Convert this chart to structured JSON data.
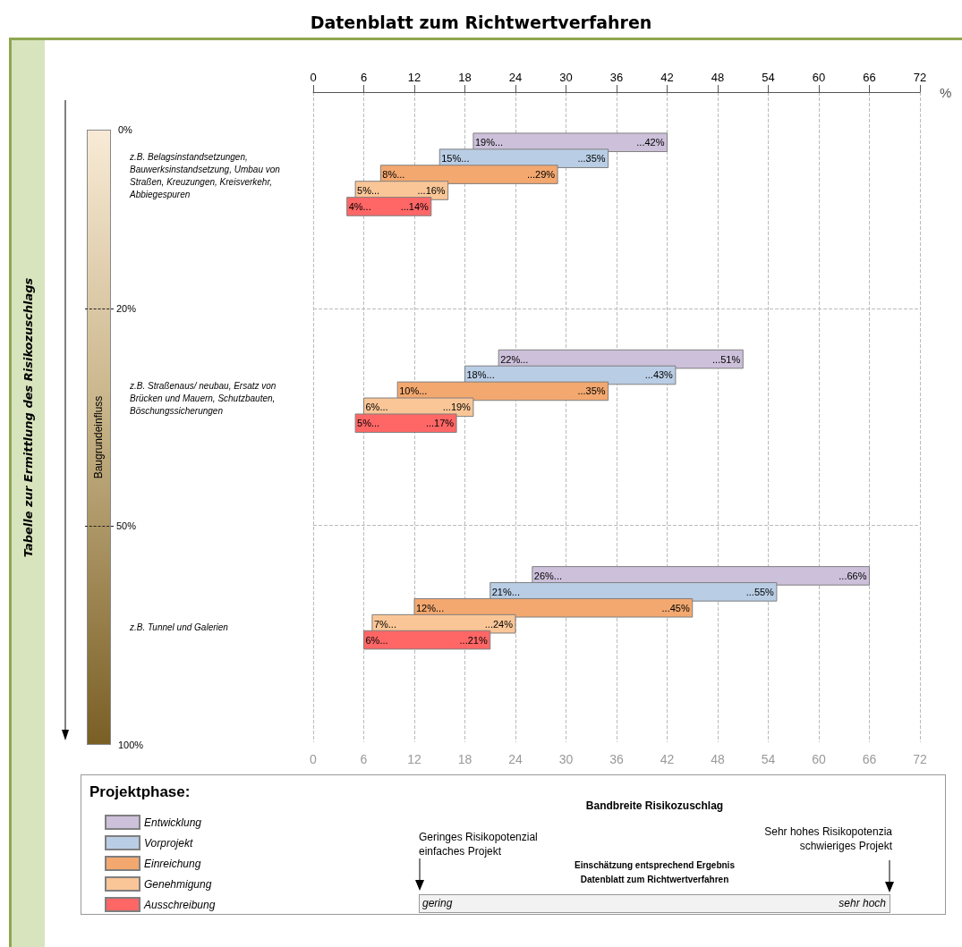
{
  "chart_data": {
    "type": "bar",
    "orientation": "horizontal",
    "title": "Datenblatt zum Richtwertverfahren",
    "xlabel": "%",
    "ylabel": "Baugrundeinfluss",
    "legend_title": "Projektphase:",
    "legend": "bottom left",
    "grid": true,
    "categories": [
      "z.B. Belagsinstandsetzungen, Bauwerksinstandsetzung, Umbau von Straßen, Kreuzungen, Kreisverkehr, Abbiegespuren",
      "z.B. Straßenaus/ neubau, Ersatz von Brücken und Mauern, Schutzbauten, Böschungssicherungen",
      "z.B. Tunnel und Galerien"
    ],
    "series": [
      {
        "name": "Entwicklung",
        "color": "#ccc0da",
        "base": [
          19,
          22,
          26
        ],
        "values": [
          23,
          29,
          40
        ],
        "value_labels": [
          [
            "19%...",
            "...42%"
          ],
          [
            "22%...",
            "...51%"
          ],
          [
            "26%...",
            "...66%"
          ]
        ]
      },
      {
        "name": "Vorprojekt",
        "color": "#b9cde5",
        "base": [
          15,
          18,
          21
        ],
        "values": [
          20,
          25,
          34
        ],
        "value_labels": [
          [
            "15%...",
            "...35%"
          ],
          [
            "18%...",
            "...43%"
          ],
          [
            "21%...",
            "...55%"
          ]
        ]
      },
      {
        "name": "Einreichung",
        "color": "#f3a86f",
        "base": [
          8,
          10,
          12
        ],
        "values": [
          21,
          25,
          33
        ],
        "value_labels": [
          [
            "8%...",
            "...29%"
          ],
          [
            "10%...",
            "...35%"
          ],
          [
            "12%...",
            "...45%"
          ]
        ]
      },
      {
        "name": "Genehmigung",
        "color": "#fac697",
        "base": [
          5,
          6,
          7
        ],
        "values": [
          11,
          13,
          17
        ],
        "value_labels": [
          [
            "5%...",
            "...16%"
          ],
          [
            "6%...",
            "...19%"
          ],
          [
            "7%...",
            "...24%"
          ]
        ]
      },
      {
        "name": "Ausschreibung",
        "color": "#ff6666",
        "base": [
          4,
          5,
          6
        ],
        "values": [
          10,
          12,
          15
        ],
        "value_labels": [
          [
            "4%...",
            "...14%"
          ],
          [
            "5%...",
            "...17%"
          ],
          [
            "6%...",
            "...21%"
          ]
        ]
      }
    ],
    "xlim": [
      0,
      72
    ],
    "xticks": [
      0,
      6,
      12,
      18,
      24,
      30,
      36,
      42,
      48,
      54,
      60,
      66,
      72
    ],
    "x2lim": [
      0,
      72
    ],
    "x2ticks": [
      0,
      6,
      12,
      18,
      24,
      30,
      36,
      42,
      48,
      54,
      60,
      66,
      72
    ],
    "annotations": [
      "Tabelle zur Ermittlung des Risikozuschlags",
      "0%",
      "20%",
      "50%",
      "100%",
      "Bandbreite Risikozuschlag",
      "Geringes Risikopotenzial\neinfaches Projekt",
      "Sehr hohes Risikopotenzia\nschwieriges Projekt",
      "Einschätzung entsprechend Ergebnis\nDatenblatt zum Richtwertverfahren",
      "gering",
      "sehr hoch"
    ]
  }
}
